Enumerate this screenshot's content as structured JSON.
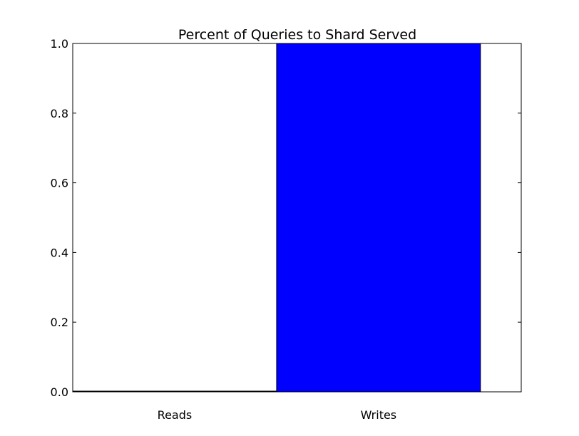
{
  "chart_data": {
    "type": "bar",
    "title": "Percent of Queries to Shard Served",
    "xlabel": "",
    "ylabel": "",
    "categories": [
      "Reads",
      "Writes"
    ],
    "values": [
      0.0,
      1.0
    ],
    "ylim": [
      0,
      1.0
    ],
    "yticks": [
      "0.0",
      "0.2",
      "0.4",
      "0.6",
      "0.8",
      "1.0"
    ],
    "grid": false,
    "legend": "none",
    "bar_color": "#0000ff"
  }
}
